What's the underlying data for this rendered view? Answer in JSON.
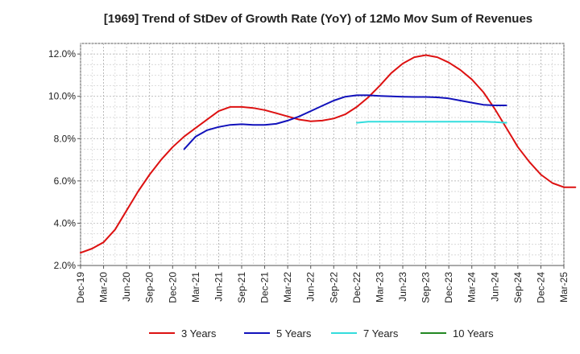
{
  "chart_data": {
    "type": "line",
    "title": "[1969]  Trend of StDev of Growth Rate (YoY) of 12Mo Mov Sum of Revenues",
    "xlabel": "",
    "ylabel": "",
    "ylim": [
      2.0,
      12.5
    ],
    "y_ticks": [
      2.0,
      4.0,
      6.0,
      8.0,
      10.0,
      12.0
    ],
    "y_tick_labels": [
      "2.0%",
      "4.0%",
      "6.0%",
      "8.0%",
      "10.0%",
      "12.0%"
    ],
    "x_tick_labels": [
      "Dec-19",
      "Mar-20",
      "Jun-20",
      "Sep-20",
      "Dec-20",
      "Mar-21",
      "Jun-21",
      "Sep-21",
      "Dec-21",
      "Mar-22",
      "Jun-22",
      "Sep-22",
      "Dec-22",
      "Mar-23",
      "Jun-23",
      "Sep-23",
      "Dec-23",
      "Mar-24",
      "Jun-24",
      "Sep-24",
      "Dec-24",
      "Mar-25"
    ],
    "grid": true,
    "legend_position": "bottom",
    "series": [
      {
        "name": "3 Years",
        "color": "#dd1111",
        "values": [
          [
            0,
            2.6
          ],
          [
            1,
            2.8
          ],
          [
            2,
            3.1
          ],
          [
            3,
            3.7
          ],
          [
            4,
            4.6
          ],
          [
            5,
            5.5
          ],
          [
            6,
            6.3
          ],
          [
            7,
            7.0
          ],
          [
            8,
            7.6
          ],
          [
            9,
            8.1
          ],
          [
            10,
            8.5
          ],
          [
            11,
            8.9
          ],
          [
            12,
            9.3
          ],
          [
            13,
            9.5
          ],
          [
            14,
            9.5
          ],
          [
            15,
            9.45
          ],
          [
            16,
            9.35
          ],
          [
            17,
            9.2
          ],
          [
            18,
            9.05
          ],
          [
            19,
            8.9
          ],
          [
            20,
            8.82
          ],
          [
            21,
            8.85
          ],
          [
            22,
            8.95
          ],
          [
            23,
            9.15
          ],
          [
            24,
            9.5
          ],
          [
            25,
            9.95
          ],
          [
            26,
            10.5
          ],
          [
            27,
            11.1
          ],
          [
            28,
            11.55
          ],
          [
            29,
            11.85
          ],
          [
            30,
            11.95
          ],
          [
            31,
            11.85
          ],
          [
            32,
            11.6
          ],
          [
            33,
            11.25
          ],
          [
            34,
            10.8
          ],
          [
            35,
            10.2
          ],
          [
            36,
            9.4
          ],
          [
            37,
            8.5
          ],
          [
            38,
            7.6
          ],
          [
            39,
            6.9
          ],
          [
            40,
            6.3
          ],
          [
            41,
            5.9
          ],
          [
            42,
            5.7
          ],
          [
            43,
            5.7
          ]
        ]
      },
      {
        "name": "5 Years",
        "color": "#1111bb",
        "values": [
          [
            9,
            7.5
          ],
          [
            10,
            8.1
          ],
          [
            11,
            8.4
          ],
          [
            12,
            8.55
          ],
          [
            13,
            8.65
          ],
          [
            14,
            8.68
          ],
          [
            15,
            8.65
          ],
          [
            16,
            8.65
          ],
          [
            17,
            8.7
          ],
          [
            18,
            8.85
          ],
          [
            19,
            9.05
          ],
          [
            20,
            9.3
          ],
          [
            21,
            9.55
          ],
          [
            22,
            9.8
          ],
          [
            23,
            9.98
          ],
          [
            24,
            10.05
          ],
          [
            25,
            10.05
          ],
          [
            26,
            10.02
          ],
          [
            27,
            10.0
          ],
          [
            28,
            9.98
          ],
          [
            29,
            9.97
          ],
          [
            30,
            9.97
          ],
          [
            31,
            9.95
          ],
          [
            32,
            9.9
          ],
          [
            33,
            9.8
          ],
          [
            34,
            9.7
          ],
          [
            35,
            9.6
          ],
          [
            36,
            9.57
          ],
          [
            37,
            9.57
          ]
        ]
      },
      {
        "name": "7 Years",
        "color": "#33dddd",
        "values": [
          [
            24,
            8.75
          ],
          [
            25,
            8.8
          ],
          [
            26,
            8.8
          ],
          [
            27,
            8.8
          ],
          [
            28,
            8.8
          ],
          [
            29,
            8.8
          ],
          [
            30,
            8.8
          ],
          [
            31,
            8.8
          ],
          [
            32,
            8.8
          ],
          [
            33,
            8.8
          ],
          [
            34,
            8.8
          ],
          [
            35,
            8.8
          ],
          [
            36,
            8.78
          ],
          [
            37,
            8.75
          ]
        ]
      },
      {
        "name": "10 Years",
        "color": "#228822",
        "values": []
      }
    ]
  }
}
